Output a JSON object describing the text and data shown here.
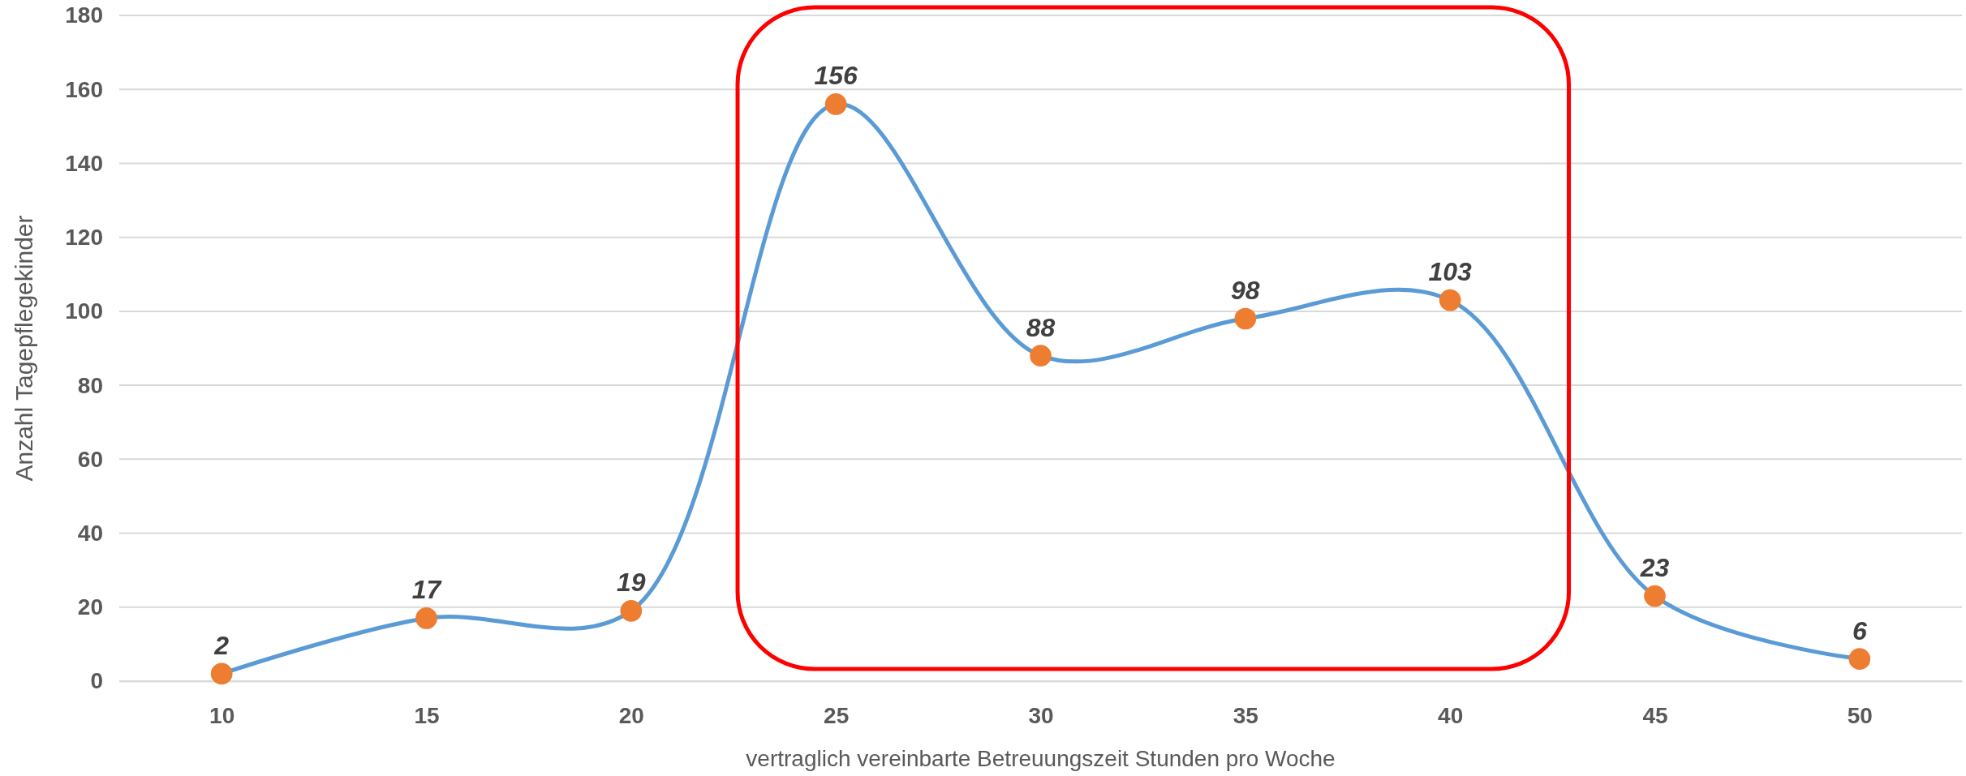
{
  "chart_data": {
    "type": "line",
    "xlabel": "vertraglich vereinbarte Betreuungszeit Stunden pro Woche",
    "ylabel": "Anzahl Tagepflegekinder",
    "categories": [
      "10",
      "15",
      "20",
      "25",
      "30",
      "35",
      "40",
      "45",
      "50"
    ],
    "series": [
      {
        "color": "#5b9bd5",
        "colors": [
          "#ed7d31",
          "#ed7d31",
          "#ed7d31",
          "#ed7d31",
          "#ed7d31",
          "#ed7d31",
          "#ed7d31",
          "#ed7d31",
          "#ed7d31"
        ],
        "values": [
          2,
          17,
          19,
          156,
          88,
          98,
          103,
          23,
          6
        ]
      }
    ],
    "ylim": [
      0,
      180
    ],
    "yticks": [
      0,
      20,
      40,
      60,
      80,
      100,
      120,
      140,
      160,
      180
    ],
    "grid": "y",
    "marker": "circle",
    "line_style": "solid",
    "data_labels": true
  }
}
